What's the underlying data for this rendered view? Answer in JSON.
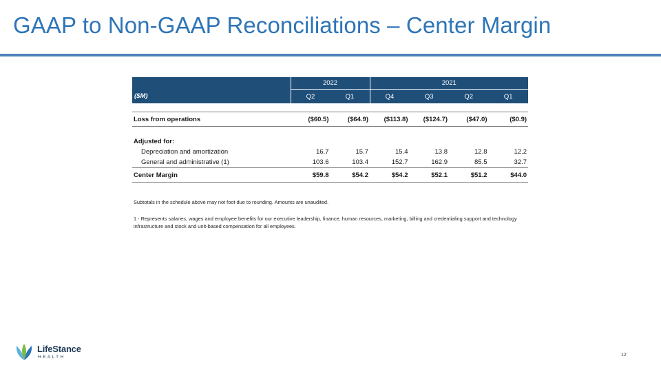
{
  "title": "GAAP to Non-GAAP Reconciliations – Center Margin",
  "table": {
    "unit_label": "($M)",
    "years": [
      "2022",
      "2021"
    ],
    "quarters": [
      "Q2",
      "Q1",
      "Q4",
      "Q3",
      "Q2",
      "Q1"
    ],
    "loss_row": {
      "label": "Loss from operations",
      "values": [
        "($60.5)",
        "($64.9)",
        "($113.8)",
        "($124.7)",
        "($47.0)",
        "($0.9)"
      ]
    },
    "adjusted_label": "Adjusted for:",
    "items": [
      {
        "label": "Depreciation and amortization",
        "values": [
          "16.7",
          "15.7",
          "15.4",
          "13.8",
          "12.8",
          "12.2"
        ]
      },
      {
        "label": "General and administrative (1)",
        "values": [
          "103.6",
          "103.4",
          "152.7",
          "162.9",
          "85.5",
          "32.7"
        ]
      }
    ],
    "center_margin": {
      "label": "Center Margin",
      "values": [
        "$59.8",
        "$54.2",
        "$54.2",
        "$52.1",
        "$51.2",
        "$44.0"
      ]
    }
  },
  "notes": {
    "rounding": "Subtotals in the schedule above may not foot due to rounding. Amounts are unaudited.",
    "footnote_1": "1 - Represents salaries, wages and employee benefits for our executive leadership, finance, human resources, marketing, billing and credentialing support and technology infrastructure and stock and unit-based compensation for all employees."
  },
  "logo": {
    "brand": "LifeStance",
    "sub": "HEALTH",
    "icon": "lifestance-leaf-icon",
    "colors": [
      "#2e75b6",
      "#5fb3d9",
      "#7dbb42"
    ]
  },
  "page_number": "12",
  "colors": {
    "title": "#2e75b6",
    "header_bg": "#1f4e79",
    "rule": "#4f81bd"
  }
}
